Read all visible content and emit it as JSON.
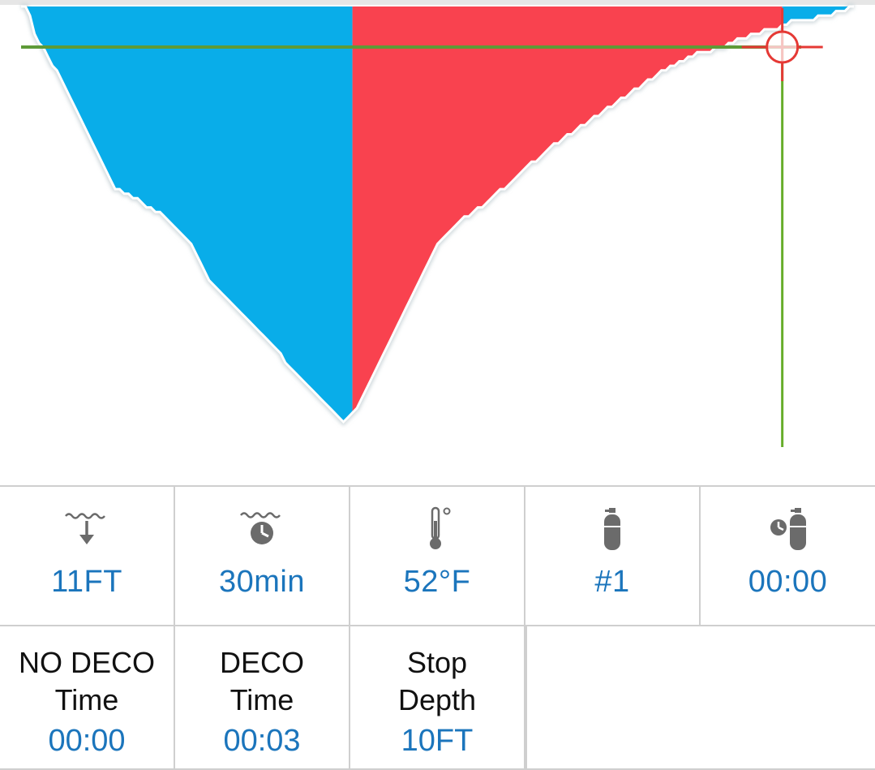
{
  "chart_data": {
    "type": "area",
    "ascent_index": 74,
    "cursor_index": 170,
    "depths": [
      0,
      0,
      2,
      6,
      8,
      9,
      11,
      13,
      14,
      16,
      18,
      20,
      22,
      24,
      26,
      28,
      30,
      32,
      34,
      36,
      38,
      40,
      40,
      41,
      41,
      42,
      42,
      43,
      44,
      44,
      45,
      45,
      46,
      47,
      48,
      49,
      50,
      51,
      52,
      54,
      56,
      58,
      60,
      61,
      62,
      63,
      64,
      65,
      66,
      67,
      68,
      69,
      70,
      71,
      72,
      73,
      74,
      75,
      76,
      78,
      79,
      80,
      81,
      82,
      83,
      84,
      85,
      86,
      87,
      88,
      89,
      90,
      91,
      90,
      89,
      88,
      86,
      84,
      82,
      80,
      78,
      76,
      74,
      72,
      70,
      68,
      66,
      64,
      62,
      60,
      58,
      56,
      54,
      52,
      51,
      50,
      49,
      48,
      47,
      46,
      46,
      45,
      44,
      44,
      43,
      42,
      41,
      40,
      40,
      39,
      38,
      37,
      36,
      35,
      34,
      34,
      33,
      32,
      31,
      30,
      30,
      29,
      28,
      28,
      27,
      26,
      26,
      25,
      24,
      24,
      23,
      22,
      22,
      21,
      20,
      20,
      19,
      18,
      18,
      17,
      16,
      16,
      15,
      14,
      14,
      13,
      13,
      12,
      12,
      11,
      11,
      10,
      10,
      10,
      10,
      9,
      9,
      9,
      8,
      8,
      7,
      7,
      7,
      6,
      6,
      6,
      5,
      5,
      5,
      5,
      4,
      4,
      3,
      3,
      3,
      3,
      3,
      3,
      2,
      2,
      2,
      2,
      1,
      1,
      1,
      0,
      0
    ]
  },
  "colors": {
    "descent": "#09ade9",
    "ascent": "#f9424f",
    "cursor_h": "#5e9a37",
    "cursor_v": "#67ad2a",
    "cursor_red": "#e53935",
    "value": "#1b75bc"
  },
  "stats": {
    "depth_value": "11FT",
    "dive_time_value": "30min",
    "temperature_value": "52°F",
    "tank_value": "#1",
    "tank_time_value": "00:00",
    "no_deco_label_1": "NO DECO",
    "no_deco_label_2": "Time",
    "no_deco_value": "00:00",
    "deco_label_1": "DECO",
    "deco_label_2": "Time",
    "deco_value": "00:03",
    "stop_label_1": "Stop",
    "stop_label_2": "Depth",
    "stop_value": "10FT"
  },
  "icons": [
    "depth-icon",
    "dive-time-icon",
    "thermometer-icon",
    "tank-icon",
    "tank-timer-icon"
  ]
}
